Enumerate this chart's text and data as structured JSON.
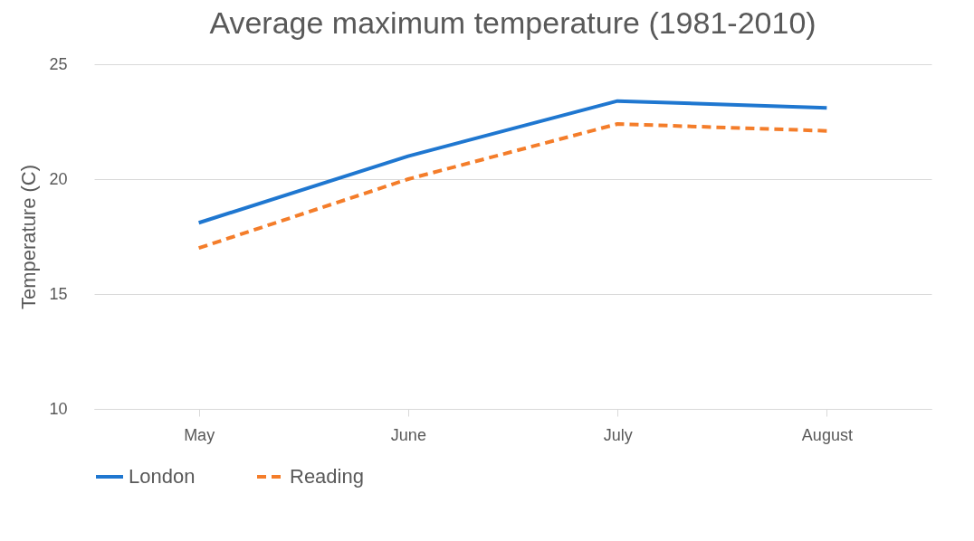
{
  "chart_data": {
    "type": "line",
    "title": "Average maximum temperature (1981-2010)",
    "ylabel": "Temperature (C)",
    "categories": [
      "May",
      "June",
      "July",
      "August"
    ],
    "series": [
      {
        "name": "London",
        "color": "#1f77d0",
        "line_style": "solid",
        "values": [
          18.1,
          21.0,
          23.4,
          23.1
        ]
      },
      {
        "name": "Reading",
        "color": "#f47d2a",
        "line_style": "dashed",
        "values": [
          17.0,
          20.0,
          22.4,
          22.1
        ]
      }
    ],
    "ylim": [
      10,
      25
    ],
    "yticks": [
      10,
      15,
      20,
      25
    ],
    "grid": "y",
    "legend": "bottom",
    "marker": "none"
  }
}
